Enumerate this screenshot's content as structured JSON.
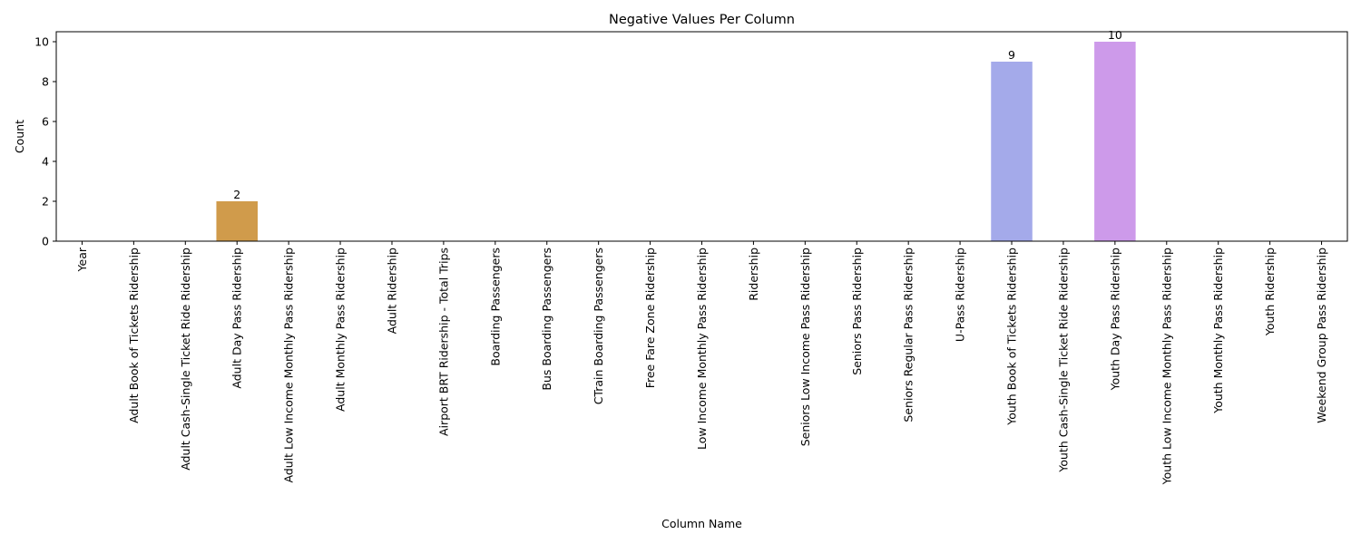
{
  "chart_data": {
    "type": "bar",
    "title": "Negative Values Per Column",
    "xlabel": "Column Name",
    "ylabel": "Count",
    "ylim": [
      0,
      10.5
    ],
    "yticks": [
      0,
      2,
      4,
      6,
      8,
      10
    ],
    "grid": false,
    "categories": [
      "Year",
      "Adult Book of Tickets Ridership",
      "Adult Cash-Single Ticket Ride Ridership",
      "Adult Day Pass Ridership",
      "Adult Low Income Monthly Pass Ridership",
      "Adult Monthly Pass Ridership",
      "Adult Ridership",
      "Airport BRT Ridership - Total Trips",
      "Boarding Passengers",
      "Bus Boarding Passengers",
      "CTrain Boarding Passengers",
      "Free Fare Zone Ridership",
      "Low Income Monthly Pass Ridership",
      "Ridership",
      "Seniors Low Income Pass Ridership",
      "Seniors Pass Ridership",
      "Seniors Regular Pass Ridership",
      "U-Pass Ridership",
      "Youth Book of Tickets Ridership",
      "Youth Cash-Single Ticket Ride Ridership",
      "Youth Day Pass Ridership",
      "Youth Low Income Monthly Pass Ridership",
      "Youth Monthly Pass Ridership",
      "Youth Ridership",
      "Weekend Group Pass Ridership"
    ],
    "values": [
      0,
      0,
      0,
      2,
      0,
      0,
      0,
      0,
      0,
      0,
      0,
      0,
      0,
      0,
      0,
      0,
      0,
      0,
      9,
      0,
      10,
      0,
      0,
      0,
      0
    ],
    "data_labels": [
      "",
      "",
      "",
      "2",
      "",
      "",
      "",
      "",
      "",
      "",
      "",
      "",
      "",
      "",
      "",
      "",
      "",
      "",
      "9",
      "",
      "10",
      "",
      "",
      "",
      ""
    ],
    "colors": [
      "#e8a0a0",
      "#e7a58c",
      "#e1aa70",
      "#d09b4b",
      "#c6a252",
      "#b7ab55",
      "#a6b357",
      "#93b95c",
      "#7cbf66",
      "#5fc276",
      "#50c08a",
      "#52be99",
      "#54bca6",
      "#56bab2",
      "#58b8be",
      "#5ab5cb",
      "#62b0d8",
      "#7aa9e2",
      "#a4aaea",
      "#bba4ec",
      "#cd9aea",
      "#dc92dd",
      "#e491cc",
      "#e897bb",
      "#ea9cae"
    ]
  }
}
